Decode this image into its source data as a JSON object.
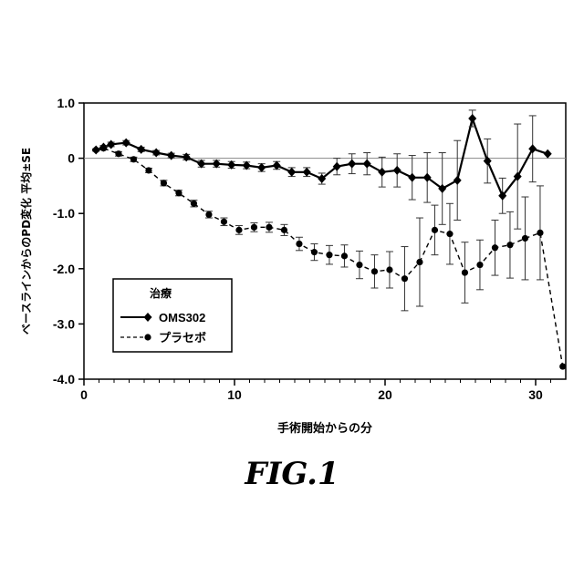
{
  "figure_label": "FIG.1",
  "chart_data": {
    "type": "line",
    "title": "",
    "xlabel": "手術開始からの分",
    "ylabel": "ベースラインからのPD変化  平均±SE",
    "xlim": [
      0,
      32
    ],
    "ylim": [
      -4.0,
      1.0
    ],
    "xticks": [
      0,
      10,
      20,
      30
    ],
    "yticks": [
      1.0,
      0.0,
      -1.0,
      -2.0,
      -3.0,
      -4.0
    ],
    "ytick_labels": [
      "1.0",
      "0",
      "-1.0",
      "-2.0",
      "-3.0",
      "-4.0"
    ],
    "reference_line_y": 0,
    "grid": false,
    "legend": {
      "title": "治療",
      "placement": "lower-left"
    },
    "series": [
      {
        "name": "OMS302",
        "marker": "diamond",
        "line_style": "solid",
        "color": "#000000",
        "points": [
          {
            "x": 0.8,
            "y": 0.15,
            "err": 0.02
          },
          {
            "x": 1.3,
            "y": 0.2,
            "err": 0.03
          },
          {
            "x": 1.8,
            "y": 0.25,
            "err": 0.04
          },
          {
            "x": 2.8,
            "y": 0.28,
            "err": 0.04
          },
          {
            "x": 3.8,
            "y": 0.16,
            "err": 0.04
          },
          {
            "x": 4.8,
            "y": 0.1,
            "err": 0.04
          },
          {
            "x": 5.8,
            "y": 0.05,
            "err": 0.04
          },
          {
            "x": 6.8,
            "y": 0.02,
            "err": 0.05
          },
          {
            "x": 7.8,
            "y": -0.1,
            "err": 0.06
          },
          {
            "x": 8.8,
            "y": -0.1,
            "err": 0.06
          },
          {
            "x": 9.8,
            "y": -0.12,
            "err": 0.06
          },
          {
            "x": 10.8,
            "y": -0.13,
            "err": 0.06
          },
          {
            "x": 11.8,
            "y": -0.17,
            "err": 0.07
          },
          {
            "x": 12.8,
            "y": -0.13,
            "err": 0.07
          },
          {
            "x": 13.8,
            "y": -0.25,
            "err": 0.08
          },
          {
            "x": 14.8,
            "y": -0.25,
            "err": 0.08
          },
          {
            "x": 15.8,
            "y": -0.37,
            "err": 0.1
          },
          {
            "x": 16.8,
            "y": -0.15,
            "err": 0.15
          },
          {
            "x": 17.8,
            "y": -0.1,
            "err": 0.18
          },
          {
            "x": 18.8,
            "y": -0.1,
            "err": 0.2
          },
          {
            "x": 19.8,
            "y": -0.25,
            "err": 0.27
          },
          {
            "x": 20.8,
            "y": -0.22,
            "err": 0.3
          },
          {
            "x": 21.8,
            "y": -0.35,
            "err": 0.4
          },
          {
            "x": 22.8,
            "y": -0.35,
            "err": 0.45
          },
          {
            "x": 23.8,
            "y": -0.55,
            "err": 0.65
          },
          {
            "x": 24.8,
            "y": -0.4,
            "err": 0.72
          },
          {
            "x": 25.8,
            "y": 0.72,
            "err": 0.15
          },
          {
            "x": 26.8,
            "y": -0.05,
            "err": 0.4
          },
          {
            "x": 27.8,
            "y": -0.68,
            "err": 0.32
          },
          {
            "x": 28.8,
            "y": -0.33,
            "err": 0.95
          },
          {
            "x": 29.8,
            "y": 0.17,
            "err": 0.6
          },
          {
            "x": 30.8,
            "y": 0.08,
            "err": 0.0
          }
        ]
      },
      {
        "name": "プラセボ",
        "marker": "circle",
        "line_style": "dashed",
        "color": "#000000",
        "points": [
          {
            "x": 0.8,
            "y": 0.15,
            "err": 0.02
          },
          {
            "x": 1.3,
            "y": 0.18,
            "err": 0.03
          },
          {
            "x": 2.3,
            "y": 0.08,
            "err": 0.04
          },
          {
            "x": 3.3,
            "y": -0.02,
            "err": 0.04
          },
          {
            "x": 4.3,
            "y": -0.22,
            "err": 0.04
          },
          {
            "x": 5.3,
            "y": -0.45,
            "err": 0.05
          },
          {
            "x": 6.3,
            "y": -0.63,
            "err": 0.05
          },
          {
            "x": 7.3,
            "y": -0.82,
            "err": 0.06
          },
          {
            "x": 8.3,
            "y": -1.02,
            "err": 0.06
          },
          {
            "x": 9.3,
            "y": -1.15,
            "err": 0.07
          },
          {
            "x": 10.3,
            "y": -1.3,
            "err": 0.08
          },
          {
            "x": 11.3,
            "y": -1.25,
            "err": 0.08
          },
          {
            "x": 12.3,
            "y": -1.25,
            "err": 0.09
          },
          {
            "x": 13.3,
            "y": -1.3,
            "err": 0.1
          },
          {
            "x": 14.3,
            "y": -1.55,
            "err": 0.12
          },
          {
            "x": 15.3,
            "y": -1.7,
            "err": 0.15
          },
          {
            "x": 16.3,
            "y": -1.75,
            "err": 0.17
          },
          {
            "x": 17.3,
            "y": -1.77,
            "err": 0.2
          },
          {
            "x": 18.3,
            "y": -1.93,
            "err": 0.25
          },
          {
            "x": 19.3,
            "y": -2.05,
            "err": 0.3
          },
          {
            "x": 20.3,
            "y": -2.02,
            "err": 0.33
          },
          {
            "x": 21.3,
            "y": -2.18,
            "err": 0.58
          },
          {
            "x": 22.3,
            "y": -1.88,
            "err": 0.8
          },
          {
            "x": 23.3,
            "y": -1.3,
            "err": 0.45
          },
          {
            "x": 24.3,
            "y": -1.37,
            "err": 0.55
          },
          {
            "x": 25.3,
            "y": -2.07,
            "err": 0.55
          },
          {
            "x": 26.3,
            "y": -1.93,
            "err": 0.45
          },
          {
            "x": 27.3,
            "y": -1.62,
            "err": 0.5
          },
          {
            "x": 28.3,
            "y": -1.57,
            "err": 0.6
          },
          {
            "x": 29.3,
            "y": -1.45,
            "err": 0.75
          },
          {
            "x": 30.3,
            "y": -1.35,
            "err": 0.85
          },
          {
            "x": 31.8,
            "y": -3.77,
            "err": 0.0
          }
        ]
      }
    ]
  }
}
